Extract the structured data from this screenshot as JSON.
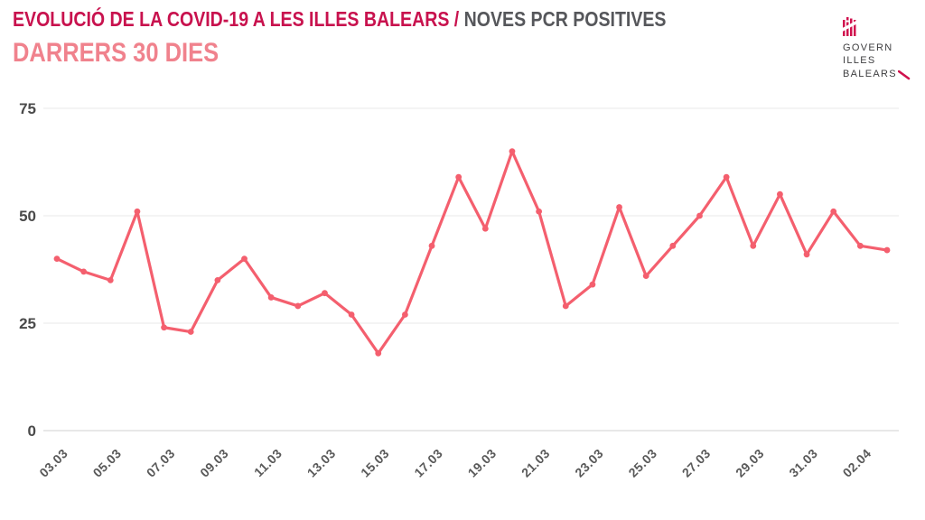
{
  "header": {
    "title_main": "EVOLUCIÓ DE LA COVID-19 A LES ILLES BALEARS /",
    "title_suffix": "NOVES PCR POSITIVES",
    "subtitle": "DARRERS 30 DIES"
  },
  "logo": {
    "line1": "GOVERN",
    "line2": "ILLES",
    "line3": "BALEARS"
  },
  "colors": {
    "title_crimson": "#c8124e",
    "title_gray": "#56575b",
    "subtitle_pink": "#f0828d",
    "line": "#f45f6e",
    "axis_label_gray": "#4a4a4a",
    "tick_label_gray": "#595959",
    "grid": "#ededed",
    "grid_zero": "#d9d9d9",
    "logo_crimson": "#d0114d",
    "logo_text": "#3e3e40"
  },
  "chart_data": {
    "type": "line",
    "title": "EVOLUCIÓ DE LA COVID-19 A LES ILLES BALEARS / NOVES PCR POSITIVES — DARRERS 30 DIES",
    "x_tick_labels": [
      "03.03",
      "05.03",
      "07.03",
      "09.03",
      "11.03",
      "13.03",
      "15.03",
      "17.03",
      "19.03",
      "21.03",
      "23.03",
      "25.03",
      "27.03",
      "29.03",
      "31.03",
      "02.04"
    ],
    "x_tick_every": 2,
    "values": [
      40,
      37,
      35,
      51,
      24,
      23,
      35,
      40,
      31,
      29,
      32,
      27,
      18,
      27,
      43,
      59,
      47,
      65,
      51,
      29,
      34,
      52,
      36,
      43,
      50,
      59,
      43,
      55,
      41,
      51,
      43,
      42
    ],
    "yticks": [
      0,
      25,
      50,
      75
    ],
    "ylim": [
      0,
      75
    ],
    "grid": "horizontal",
    "legend": "none",
    "marker": "circle",
    "line_color": "#f45f6e"
  }
}
